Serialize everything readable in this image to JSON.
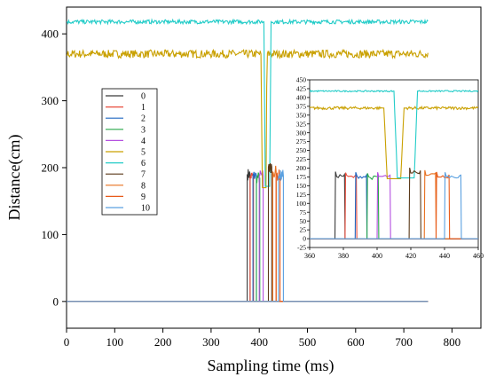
{
  "chart_data": [
    {
      "type": "line",
      "xlabel": "Sampling time (ms)",
      "ylabel": "Distance(cm)",
      "xlim": [
        0,
        860
      ],
      "ylim": [
        -40,
        440
      ],
      "xticks": [
        0,
        100,
        200,
        300,
        400,
        500,
        600,
        700,
        800
      ],
      "yticks": [
        0,
        100,
        200,
        300,
        400
      ],
      "legend": {
        "placement": "left-middle",
        "entries": [
          "0",
          "1",
          "2",
          "3",
          "4",
          "5",
          "6",
          "7",
          "8",
          "9",
          "10"
        ]
      },
      "series": [
        {
          "name": "0",
          "color": "#3a3a3a",
          "pulse": {
            "start": 375,
            "end": 381
          },
          "high": 190
        },
        {
          "name": "1",
          "color": "#e84c3c",
          "pulse": {
            "start": 381,
            "end": 388
          },
          "high": 187
        },
        {
          "name": "2",
          "color": "#1f66c1",
          "pulse": {
            "start": 387,
            "end": 394
          },
          "high": 188
        },
        {
          "name": "3",
          "color": "#2aa84a",
          "pulse": {
            "start": 394,
            "end": 401
          },
          "high": 185
        },
        {
          "name": "4",
          "color": "#b44fe0",
          "pulse": {
            "start": 400,
            "end": 408
          },
          "high": 188
        },
        {
          "name": "5",
          "color": "#c9a000",
          "baseline": 370,
          "dip": {
            "start": 404,
            "end": 416,
            "low": 170
          }
        },
        {
          "name": "6",
          "color": "#22ccc8",
          "baseline": 418,
          "dip": {
            "start": 410,
            "end": 424,
            "low": 172
          }
        },
        {
          "name": "7",
          "color": "#5b3a1a",
          "pulse": {
            "start": 419,
            "end": 426
          },
          "high": 201
        },
        {
          "name": "8",
          "color": "#e8701f",
          "pulse": {
            "start": 428,
            "end": 435
          },
          "high": 194
        },
        {
          "name": "9",
          "color": "#e85a1a",
          "pulse": {
            "start": 435,
            "end": 443
          },
          "high": 189
        },
        {
          "name": "10",
          "color": "#5aa0e0",
          "pulse": {
            "start": 440,
            "end": 450
          },
          "high": 188
        }
      ],
      "x_end": 750
    },
    {
      "type": "line",
      "role": "inset",
      "xlim": [
        360,
        460
      ],
      "ylim": [
        -25,
        450
      ],
      "xticks": [
        360,
        380,
        400,
        420,
        440,
        460
      ],
      "yticks": [
        -25,
        0,
        25,
        50,
        75,
        100,
        125,
        150,
        175,
        200,
        225,
        250,
        275,
        300,
        325,
        350,
        375,
        400,
        425,
        450
      ]
    }
  ]
}
